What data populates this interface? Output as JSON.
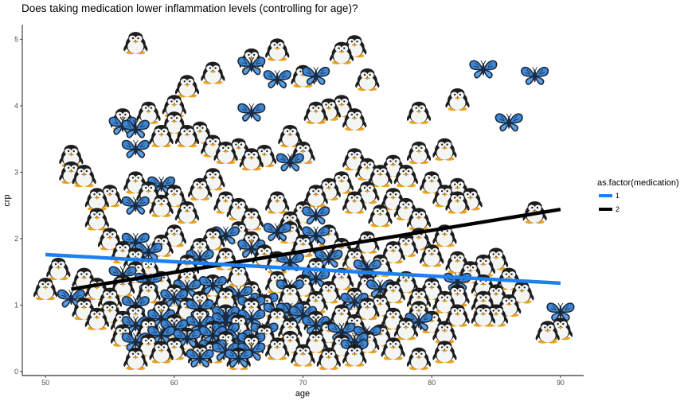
{
  "chart_data": {
    "type": "scatter",
    "title": "Does taking medication lower inflammation levels (controlling for age)?",
    "xlabel": "age",
    "ylabel": "crp",
    "xlim": [
      48.2,
      91.8
    ],
    "ylim": [
      -0.06,
      5.22
    ],
    "x_ticks": [
      50,
      60,
      70,
      80,
      90
    ],
    "y_ticks": [
      0,
      1,
      2,
      3,
      4,
      5
    ],
    "grid": false,
    "legend": {
      "title": "as.factor(medication)",
      "position": "right",
      "entries": [
        {
          "label": "1",
          "color": "#1e7ff0"
        },
        {
          "label": "2",
          "color": "#000000"
        }
      ]
    },
    "series": [
      {
        "name": "2",
        "marker": "penguin",
        "line_color": "#000000",
        "fit_line": {
          "x": [
            52,
            90
          ],
          "y": [
            1.24,
            2.44
          ]
        },
        "points": [
          [
            50,
            1.25
          ],
          [
            57,
            4.95
          ],
          [
            61,
            4.3
          ],
          [
            63,
            4.5
          ],
          [
            66,
            4.7
          ],
          [
            68,
            4.85
          ],
          [
            70,
            4.45
          ],
          [
            73,
            4.8
          ],
          [
            74,
            4.9
          ],
          [
            75,
            4.4
          ],
          [
            82,
            4.1
          ],
          [
            79,
            3.9
          ],
          [
            52,
            3.25
          ],
          [
            52,
            3.0
          ],
          [
            53,
            2.95
          ],
          [
            54,
            2.6
          ],
          [
            55,
            2.65
          ],
          [
            54,
            2.3
          ],
          [
            56,
            3.8
          ],
          [
            58,
            3.9
          ],
          [
            59,
            3.55
          ],
          [
            60,
            4.0
          ],
          [
            60,
            3.75
          ],
          [
            61,
            3.55
          ],
          [
            62,
            3.6
          ],
          [
            63,
            3.4
          ],
          [
            64,
            3.3
          ],
          [
            65,
            3.35
          ],
          [
            66,
            3.2
          ],
          [
            67,
            3.25
          ],
          [
            69,
            3.55
          ],
          [
            70,
            3.3
          ],
          [
            71,
            3.9
          ],
          [
            72,
            3.95
          ],
          [
            73,
            4.0
          ],
          [
            74,
            3.8
          ],
          [
            74,
            3.2
          ],
          [
            75,
            3.05
          ],
          [
            76,
            2.95
          ],
          [
            77,
            3.1
          ],
          [
            78,
            2.95
          ],
          [
            79,
            3.3
          ],
          [
            81,
            3.35
          ],
          [
            80,
            2.85
          ],
          [
            81,
            2.65
          ],
          [
            82,
            2.75
          ],
          [
            83,
            2.6
          ],
          [
            82,
            2.55
          ],
          [
            57,
            2.85
          ],
          [
            58,
            2.7
          ],
          [
            59,
            2.5
          ],
          [
            60,
            2.65
          ],
          [
            61,
            2.4
          ],
          [
            62,
            2.75
          ],
          [
            63,
            2.9
          ],
          [
            64,
            2.55
          ],
          [
            65,
            2.45
          ],
          [
            66,
            2.3
          ],
          [
            68,
            2.55
          ],
          [
            69,
            2.25
          ],
          [
            70,
            2.4
          ],
          [
            71,
            2.65
          ],
          [
            72,
            2.75
          ],
          [
            73,
            2.85
          ],
          [
            74,
            2.55
          ],
          [
            75,
            2.7
          ],
          [
            76,
            2.35
          ],
          [
            77,
            2.6
          ],
          [
            78,
            2.45
          ],
          [
            79,
            2.3
          ],
          [
            88,
            2.4
          ],
          [
            87,
            1.2
          ],
          [
            55,
            2.0
          ],
          [
            56,
            1.8
          ],
          [
            57,
            1.7
          ],
          [
            58,
            1.55
          ],
          [
            59,
            1.9
          ],
          [
            60,
            2.05
          ],
          [
            61,
            1.6
          ],
          [
            62,
            1.85
          ],
          [
            63,
            2.0
          ],
          [
            64,
            1.7
          ],
          [
            65,
            2.1
          ],
          [
            66,
            1.95
          ],
          [
            67,
            1.75
          ],
          [
            68,
            1.65
          ],
          [
            69,
            2.1
          ],
          [
            70,
            1.9
          ],
          [
            71,
            1.55
          ],
          [
            72,
            2.05
          ],
          [
            73,
            1.85
          ],
          [
            74,
            1.7
          ],
          [
            75,
            1.95
          ],
          [
            76,
            1.6
          ],
          [
            77,
            1.8
          ],
          [
            78,
            1.9
          ],
          [
            79,
            2.0
          ],
          [
            80,
            1.75
          ],
          [
            81,
            2.05
          ],
          [
            82,
            1.65
          ],
          [
            83,
            1.5
          ],
          [
            84,
            1.6
          ],
          [
            85,
            1.7
          ],
          [
            86,
            1.4
          ],
          [
            84,
            1.3
          ],
          [
            51,
            1.55
          ],
          [
            53,
            1.4
          ],
          [
            54,
            1.25
          ],
          [
            55,
            1.1
          ],
          [
            56,
            1.3
          ],
          [
            57,
            1.5
          ],
          [
            58,
            1.2
          ],
          [
            59,
            1.35
          ],
          [
            60,
            1.15
          ],
          [
            61,
            1.4
          ],
          [
            62,
            1.05
          ],
          [
            63,
            1.3
          ],
          [
            64,
            1.1
          ],
          [
            65,
            1.45
          ],
          [
            66,
            1.2
          ],
          [
            67,
            1.0
          ],
          [
            68,
            1.35
          ],
          [
            69,
            1.15
          ],
          [
            70,
            1.3
          ],
          [
            71,
            1.05
          ],
          [
            72,
            1.2
          ],
          [
            73,
            1.4
          ],
          [
            74,
            1.1
          ],
          [
            75,
            1.3
          ],
          [
            76,
            1.0
          ],
          [
            77,
            1.2
          ],
          [
            78,
            1.35
          ],
          [
            79,
            1.1
          ],
          [
            80,
            1.25
          ],
          [
            81,
            1.05
          ],
          [
            82,
            1.15
          ],
          [
            84,
            1.05
          ],
          [
            85,
            1.15
          ],
          [
            86,
            1.0
          ],
          [
            85,
            0.85
          ],
          [
            53,
            0.95
          ],
          [
            54,
            0.8
          ],
          [
            55,
            0.9
          ],
          [
            56,
            0.75
          ],
          [
            57,
            0.85
          ],
          [
            58,
            0.65
          ],
          [
            59,
            0.9
          ],
          [
            60,
            0.7
          ],
          [
            61,
            0.95
          ],
          [
            62,
            0.8
          ],
          [
            63,
            0.6
          ],
          [
            64,
            0.85
          ],
          [
            65,
            0.7
          ],
          [
            66,
            0.95
          ],
          [
            67,
            0.55
          ],
          [
            68,
            0.8
          ],
          [
            69,
            0.65
          ],
          [
            70,
            0.9
          ],
          [
            71,
            0.75
          ],
          [
            72,
            0.6
          ],
          [
            73,
            0.85
          ],
          [
            74,
            0.7
          ],
          [
            75,
            0.95
          ],
          [
            76,
            0.55
          ],
          [
            77,
            0.8
          ],
          [
            78,
            0.65
          ],
          [
            79,
            0.9
          ],
          [
            80,
            0.75
          ],
          [
            81,
            0.6
          ],
          [
            82,
            0.85
          ],
          [
            84,
            0.85
          ],
          [
            89,
            0.6
          ],
          [
            90,
            0.65
          ],
          [
            56,
            0.55
          ],
          [
            58,
            0.4
          ],
          [
            60,
            0.35
          ],
          [
            61,
            0.5
          ],
          [
            63,
            0.3
          ],
          [
            64,
            0.45
          ],
          [
            65,
            0.2
          ],
          [
            66,
            0.4
          ],
          [
            68,
            0.35
          ],
          [
            70,
            0.25
          ],
          [
            71,
            0.45
          ],
          [
            72,
            0.2
          ],
          [
            73,
            0.4
          ],
          [
            74,
            0.25
          ],
          [
            75,
            0.45
          ],
          [
            77,
            0.35
          ],
          [
            79,
            0.2
          ],
          [
            81,
            0.3
          ],
          [
            57,
            0.2
          ],
          [
            59,
            0.3
          ],
          [
            62,
            0.25
          ],
          [
            69,
            0.45
          ]
        ]
      },
      {
        "name": "1",
        "marker": "butterfly",
        "line_color": "#1e7ff0",
        "fit_line": {
          "x": [
            50,
            90
          ],
          "y": [
            1.76,
            1.33
          ]
        },
        "points": [
          [
            66,
            4.6
          ],
          [
            68,
            4.4
          ],
          [
            71,
            4.45
          ],
          [
            84,
            4.55
          ],
          [
            88,
            4.45
          ],
          [
            66,
            3.9
          ],
          [
            86,
            3.75
          ],
          [
            56,
            3.7
          ],
          [
            57,
            3.65
          ],
          [
            57,
            3.35
          ],
          [
            69,
            3.15
          ],
          [
            59,
            2.8
          ],
          [
            57,
            2.5
          ],
          [
            71,
            2.35
          ],
          [
            64,
            2.05
          ],
          [
            68,
            2.1
          ],
          [
            71,
            2.05
          ],
          [
            57,
            1.95
          ],
          [
            58,
            1.8
          ],
          [
            62,
            1.7
          ],
          [
            66,
            1.85
          ],
          [
            69,
            1.65
          ],
          [
            72,
            1.7
          ],
          [
            75,
            1.55
          ],
          [
            56,
            1.45
          ],
          [
            58,
            1.35
          ],
          [
            61,
            1.25
          ],
          [
            63,
            1.3
          ],
          [
            65,
            1.15
          ],
          [
            67,
            1.05
          ],
          [
            69,
            1.25
          ],
          [
            71,
            1.4
          ],
          [
            74,
            1.05
          ],
          [
            76,
            1.25
          ],
          [
            82,
            1.35
          ],
          [
            52,
            1.1
          ],
          [
            57,
            1.0
          ],
          [
            60,
            1.1
          ],
          [
            62,
            0.95
          ],
          [
            64,
            0.85
          ],
          [
            66,
            1.0
          ],
          [
            68,
            0.9
          ],
          [
            70,
            0.85
          ],
          [
            57,
            0.7
          ],
          [
            59,
            0.8
          ],
          [
            60,
            0.65
          ],
          [
            62,
            0.7
          ],
          [
            63,
            0.55
          ],
          [
            64,
            0.75
          ],
          [
            65,
            0.5
          ],
          [
            66,
            0.8
          ],
          [
            67,
            0.6
          ],
          [
            69,
            0.9
          ],
          [
            71,
            0.7
          ],
          [
            57,
            0.45
          ],
          [
            59,
            0.55
          ],
          [
            61,
            0.5
          ],
          [
            63,
            0.35
          ],
          [
            64,
            0.6
          ],
          [
            66,
            0.45
          ],
          [
            62,
            0.2
          ],
          [
            64,
            0.3
          ],
          [
            65,
            0.2
          ],
          [
            66,
            0.3
          ],
          [
            74,
            0.45
          ],
          [
            75,
            0.55
          ],
          [
            79,
            0.75
          ],
          [
            90,
            0.9
          ],
          [
            73,
            0.6
          ],
          [
            74,
            0.35
          ]
        ]
      }
    ]
  }
}
